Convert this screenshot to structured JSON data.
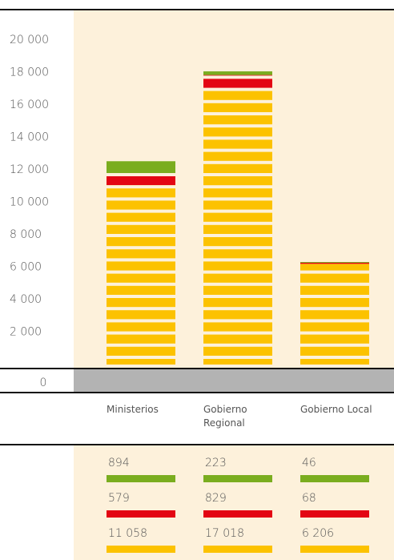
{
  "chart_data": {
    "type": "bar",
    "categories": [
      "Ministerios",
      "Gobierno Regional",
      "Gobierno Local"
    ],
    "series": [
      {
        "color": "#fcc200",
        "values": [
          11058,
          17018,
          6206
        ],
        "value_labels": [
          "11 058",
          "17 018",
          "6 206"
        ]
      },
      {
        "color": "#e30613",
        "values": [
          579,
          829,
          68
        ]
      },
      {
        "color": "#7aad1f",
        "values": [
          894,
          223,
          46
        ]
      }
    ],
    "ylim": [
      0,
      20000
    ],
    "yticks": [
      {
        "value": 0,
        "label": "0"
      },
      {
        "value": 2000,
        "label": "2 000"
      },
      {
        "value": 4000,
        "label": "4 000"
      },
      {
        "value": 6000,
        "label": "6 000"
      },
      {
        "value": 8000,
        "label": "8 000"
      },
      {
        "value": 10000,
        "label": "10 000"
      },
      {
        "value": 12000,
        "label": "12 000"
      },
      {
        "value": 14000,
        "label": "14 000"
      },
      {
        "value": 16000,
        "label": "16 000"
      },
      {
        "value": 18000,
        "label": "18 000"
      },
      {
        "value": 20000,
        "label": "20 000"
      }
    ],
    "stacked": true
  }
}
